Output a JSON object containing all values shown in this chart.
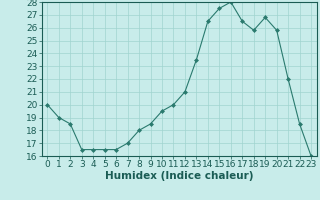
{
  "x": [
    0,
    1,
    2,
    3,
    4,
    5,
    6,
    7,
    8,
    9,
    10,
    11,
    12,
    13,
    14,
    15,
    16,
    17,
    18,
    19,
    20,
    21,
    22,
    23
  ],
  "y": [
    20.0,
    19.0,
    18.5,
    16.5,
    16.5,
    16.5,
    16.5,
    17.0,
    18.0,
    18.5,
    19.5,
    20.0,
    21.0,
    23.5,
    26.5,
    27.5,
    28.0,
    26.5,
    25.8,
    26.8,
    25.8,
    22.0,
    18.5,
    16.0
  ],
  "line_color": "#2a7a6e",
  "marker": "D",
  "marker_size": 2.0,
  "bg_color": "#c8ecea",
  "grid_color": "#a0d4cf",
  "xlabel": "Humidex (Indice chaleur)",
  "ylim": [
    16,
    28
  ],
  "xlim": [
    -0.5,
    23.5
  ],
  "yticks": [
    16,
    17,
    18,
    19,
    20,
    21,
    22,
    23,
    24,
    25,
    26,
    27,
    28
  ],
  "xticks": [
    0,
    1,
    2,
    3,
    4,
    5,
    6,
    7,
    8,
    9,
    10,
    11,
    12,
    13,
    14,
    15,
    16,
    17,
    18,
    19,
    20,
    21,
    22,
    23
  ],
  "tick_color": "#1a5c54",
  "label_fontsize": 6.5,
  "xlabel_fontsize": 7.5,
  "xlabel_fontweight": "bold"
}
